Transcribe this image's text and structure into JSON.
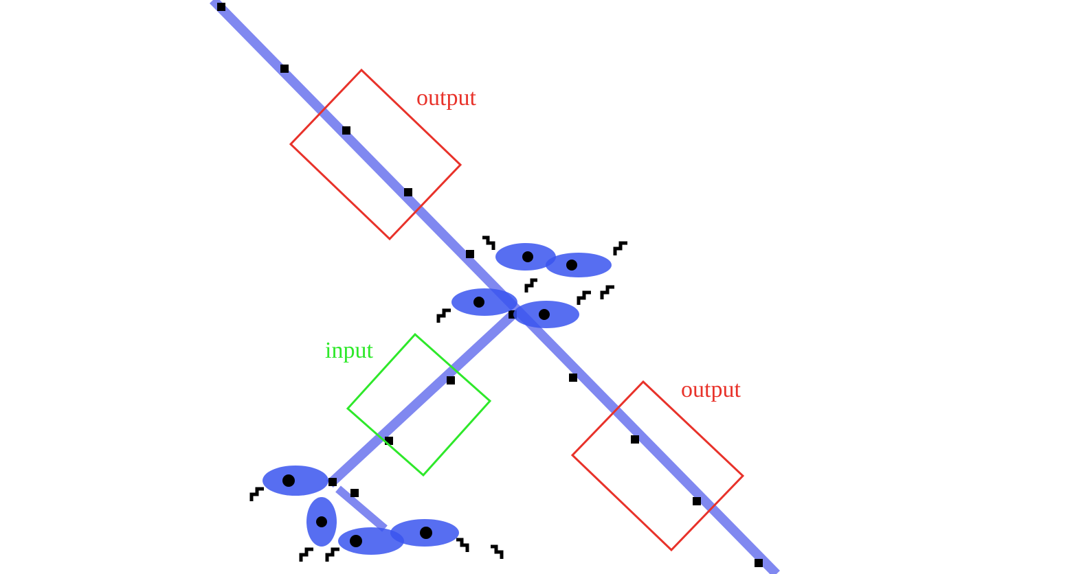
{
  "labels": {
    "output_top": "output",
    "output_bottom": "output",
    "input": "input"
  },
  "colors": {
    "background": "#ffffff",
    "track": "#8088f0",
    "emitter": "#3a55ee",
    "glider": "#000000",
    "output_box": "#e8322a",
    "input_box": "#2ee82a"
  },
  "icons": {
    "glider": "glider-icon",
    "eater": "eater-icon"
  }
}
